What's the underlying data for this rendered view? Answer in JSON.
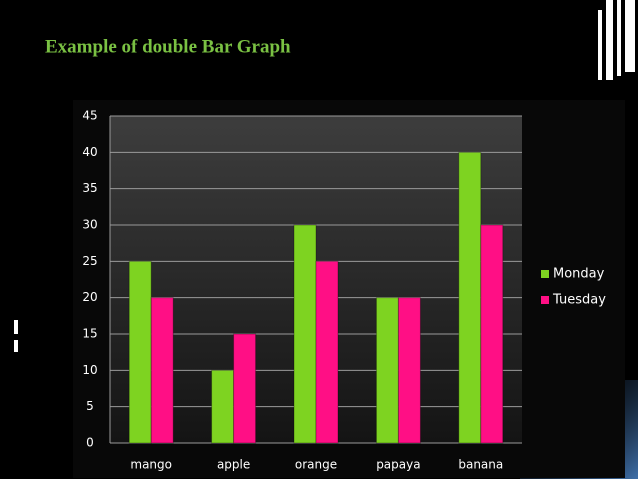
{
  "chart_data": {
    "type": "bar",
    "title": "Example of double  Bar Graph",
    "categories": [
      "mango",
      "apple",
      "orange",
      "papaya",
      "banana"
    ],
    "series": [
      {
        "name": "Monday",
        "color": "#7ed321",
        "values": [
          25,
          10,
          30,
          20,
          40
        ]
      },
      {
        "name": "Tuesday",
        "color": "#ff0f85",
        "values": [
          20,
          15,
          25,
          20,
          30
        ]
      }
    ],
    "ylim": [
      0,
      45
    ],
    "yticks": [
      0,
      5,
      10,
      15,
      20,
      25,
      30,
      35,
      40,
      45
    ],
    "grid": true,
    "legend": "right"
  }
}
